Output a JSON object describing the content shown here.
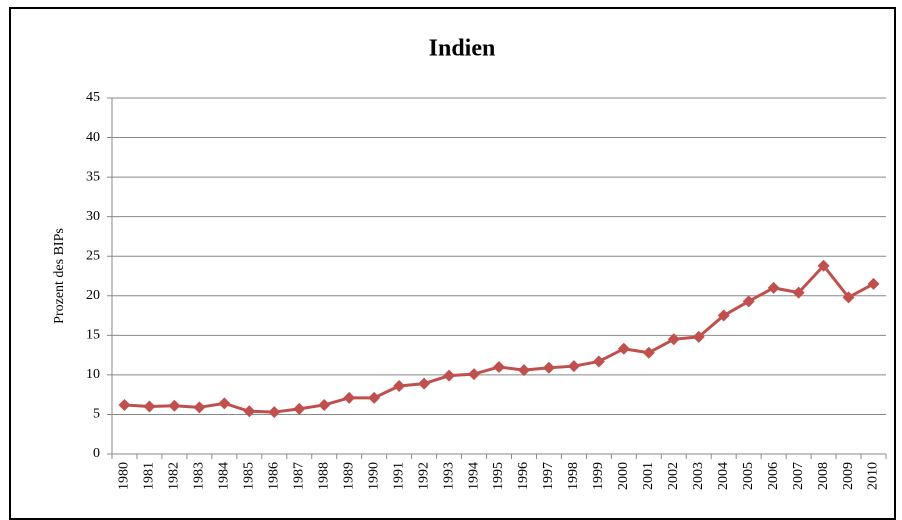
{
  "chart_data": {
    "type": "line",
    "title": "Indien",
    "y_label": "Prozent des BIPs",
    "categories": [
      "1980",
      "1981",
      "1982",
      "1983",
      "1984",
      "1985",
      "1986",
      "1987",
      "1988",
      "1989",
      "1990",
      "1991",
      "1992",
      "1993",
      "1994",
      "1995",
      "1996",
      "1997",
      "1998",
      "1999",
      "2000",
      "2001",
      "2002",
      "2003",
      "2004",
      "2005",
      "2006",
      "2007",
      "2008",
      "2009",
      "2010"
    ],
    "series": [
      {
        "name": "Indien",
        "color": "#c0504d",
        "values": [
          6.2,
          6.0,
          6.1,
          5.9,
          6.4,
          5.4,
          5.3,
          5.7,
          6.2,
          7.1,
          7.1,
          8.6,
          8.9,
          9.9,
          10.1,
          11.0,
          10.6,
          10.9,
          11.1,
          11.7,
          13.3,
          12.8,
          14.5,
          14.8,
          17.5,
          19.3,
          21.0,
          20.4,
          23.8,
          19.8,
          21.5
        ]
      }
    ],
    "ylim": [
      0,
      45
    ],
    "yticks": [
      0,
      5,
      10,
      15,
      20,
      25,
      30,
      35,
      40,
      45
    ],
    "grid": true
  }
}
